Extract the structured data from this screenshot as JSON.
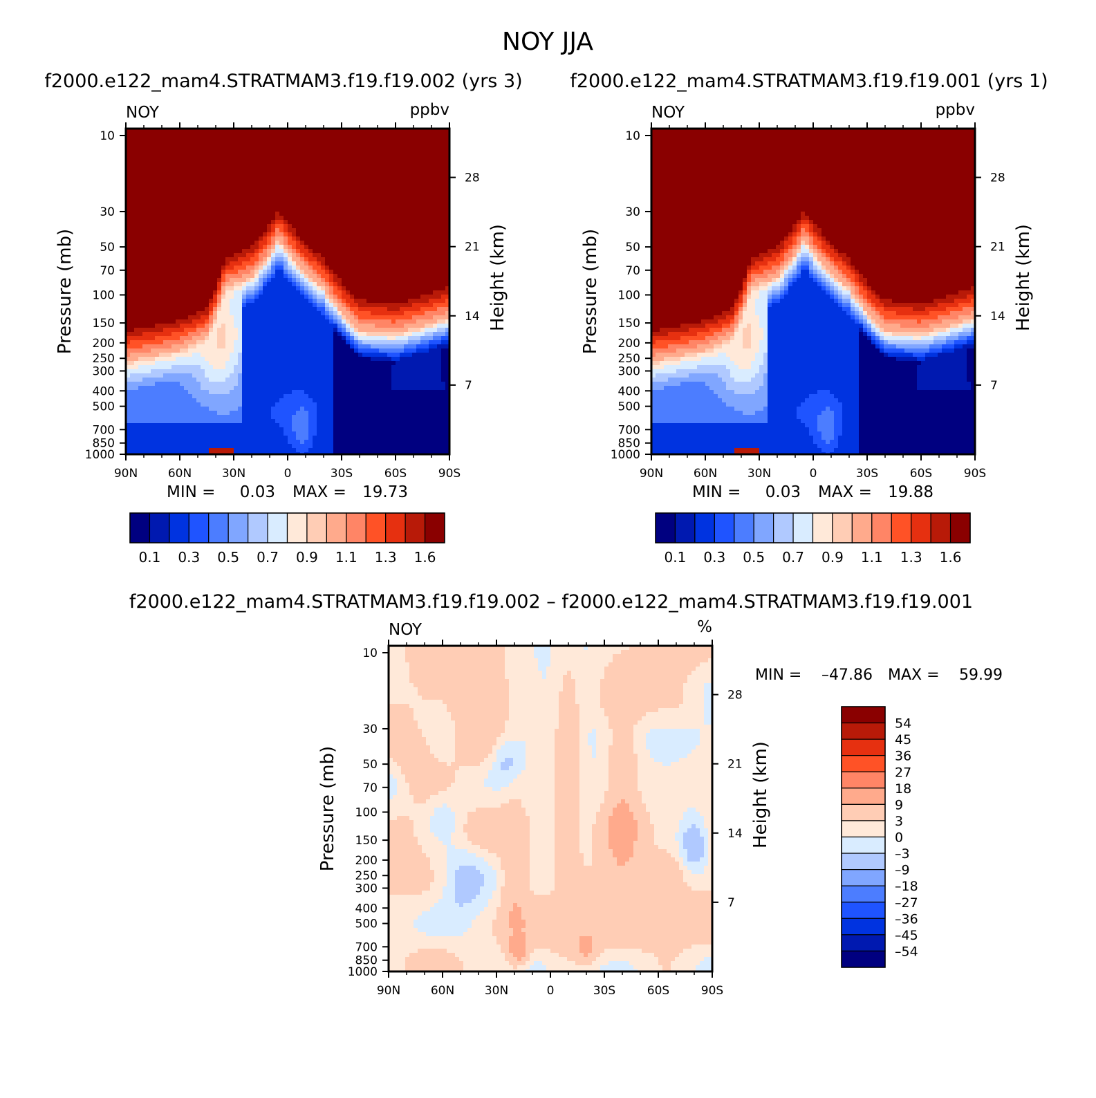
{
  "title": "NOY  JJA",
  "colors": {
    "ppbv": [
      "#000080",
      "#0019b0",
      "#0033e0",
      "#1f54ff",
      "#4c7dff",
      "#80a6ff",
      "#b0c9ff",
      "#d9ecff",
      "#ffe9d9",
      "#ffcdb5",
      "#ffaa8c",
      "#ff8566",
      "#ff5226",
      "#e63010",
      "#b81a08",
      "#8a0000"
    ],
    "diff": [
      "#000080",
      "#0019b0",
      "#0033e0",
      "#1f54ff",
      "#4c7dff",
      "#80a6ff",
      "#b0c9ff",
      "#d9ecff",
      "#ffe9d9",
      "#ffcdb5",
      "#ffaa8c",
      "#ff8566",
      "#ff5226",
      "#e63010",
      "#b81a08",
      "#8a0000"
    ]
  },
  "chart_data": [
    {
      "type": "heatmap",
      "panel": "top-left",
      "title": "f2000.e122_mam4.STRATMAM3.f19.f19.002 (yrs 3)",
      "left_label": "NOY",
      "right_label": "ppbv",
      "ylabel": "Pressure (mb)",
      "y2label": "Height (km)",
      "x_ticks": [
        "90N",
        "60N",
        "30N",
        "0",
        "30S",
        "60S",
        "90S"
      ],
      "x_range": [
        90,
        -90
      ],
      "y_ticks": [
        "10",
        "30",
        "50",
        "70",
        "100",
        "150",
        "200",
        "250",
        "300",
        "400",
        "500",
        "700",
        "850",
        "1000"
      ],
      "y_range_mb": [
        1000,
        10
      ],
      "y2_ticks": [
        "7",
        "14",
        "21",
        "28"
      ],
      "stats": {
        "min_label": "MIN =",
        "min": "0.03",
        "max_label": "MAX =",
        "max": "19.73"
      },
      "levels": [
        "0.1",
        "0.3",
        "0.5",
        "0.7",
        "0.9",
        "1.1",
        "1.3",
        "1.6"
      ],
      "features": {
        "tropopause_lat": [
          90,
          60,
          45,
          35,
          20,
          5,
          -20,
          -40,
          -60,
          -90
        ],
        "tropopause_mb": [
          280,
          240,
          200,
          100,
          85,
          50,
          100,
          180,
          190,
          150
        ]
      }
    },
    {
      "type": "heatmap",
      "panel": "top-right",
      "title": "f2000.e122_mam4.STRATMAM3.f19.f19.001 (yrs 1)",
      "left_label": "NOY",
      "right_label": "ppbv",
      "ylabel": "Pressure (mb)",
      "y2label": "Height (km)",
      "x_ticks": [
        "90N",
        "60N",
        "30N",
        "0",
        "30S",
        "60S",
        "90S"
      ],
      "x_range": [
        90,
        -90
      ],
      "y_ticks": [
        "10",
        "30",
        "50",
        "70",
        "100",
        "150",
        "200",
        "250",
        "300",
        "400",
        "500",
        "700",
        "850",
        "1000"
      ],
      "y_range_mb": [
        1000,
        10
      ],
      "y2_ticks": [
        "7",
        "14",
        "21",
        "28"
      ],
      "stats": {
        "min_label": "MIN =",
        "min": "0.03",
        "max_label": "MAX =",
        "max": "19.88"
      },
      "levels": [
        "0.1",
        "0.3",
        "0.5",
        "0.7",
        "0.9",
        "1.1",
        "1.3",
        "1.6"
      ],
      "features": {
        "tropopause_lat": [
          90,
          60,
          45,
          35,
          20,
          5,
          -20,
          -40,
          -60,
          -90
        ],
        "tropopause_mb": [
          280,
          240,
          200,
          100,
          85,
          50,
          100,
          180,
          190,
          150
        ]
      }
    },
    {
      "type": "heatmap",
      "panel": "bottom",
      "title": "f2000.e122_mam4.STRATMAM3.f19.f19.002 – f2000.e122_mam4.STRATMAM3.f19.f19.001",
      "left_label": "NOY",
      "right_label": "%",
      "ylabel": "Pressure (mb)",
      "y2label": "Height (km)",
      "x_ticks": [
        "90N",
        "60N",
        "30N",
        "0",
        "30S",
        "60S",
        "90S"
      ],
      "x_range": [
        90,
        -90
      ],
      "y_ticks": [
        "10",
        "30",
        "50",
        "70",
        "100",
        "150",
        "200",
        "250",
        "300",
        "400",
        "500",
        "700",
        "850",
        "1000"
      ],
      "y_range_mb": [
        1000,
        10
      ],
      "y2_ticks": [
        "7",
        "14",
        "21",
        "28"
      ],
      "stats": {
        "min_label": "MIN =",
        "min": "–47.86",
        "max_label": "MAX =",
        "max": "59.99"
      },
      "levels": [
        "54",
        "45",
        "36",
        "27",
        "18",
        "9",
        "3",
        "0",
        "–3",
        "–9",
        "–18",
        "–27",
        "–36",
        "–45",
        "–54"
      ]
    }
  ]
}
